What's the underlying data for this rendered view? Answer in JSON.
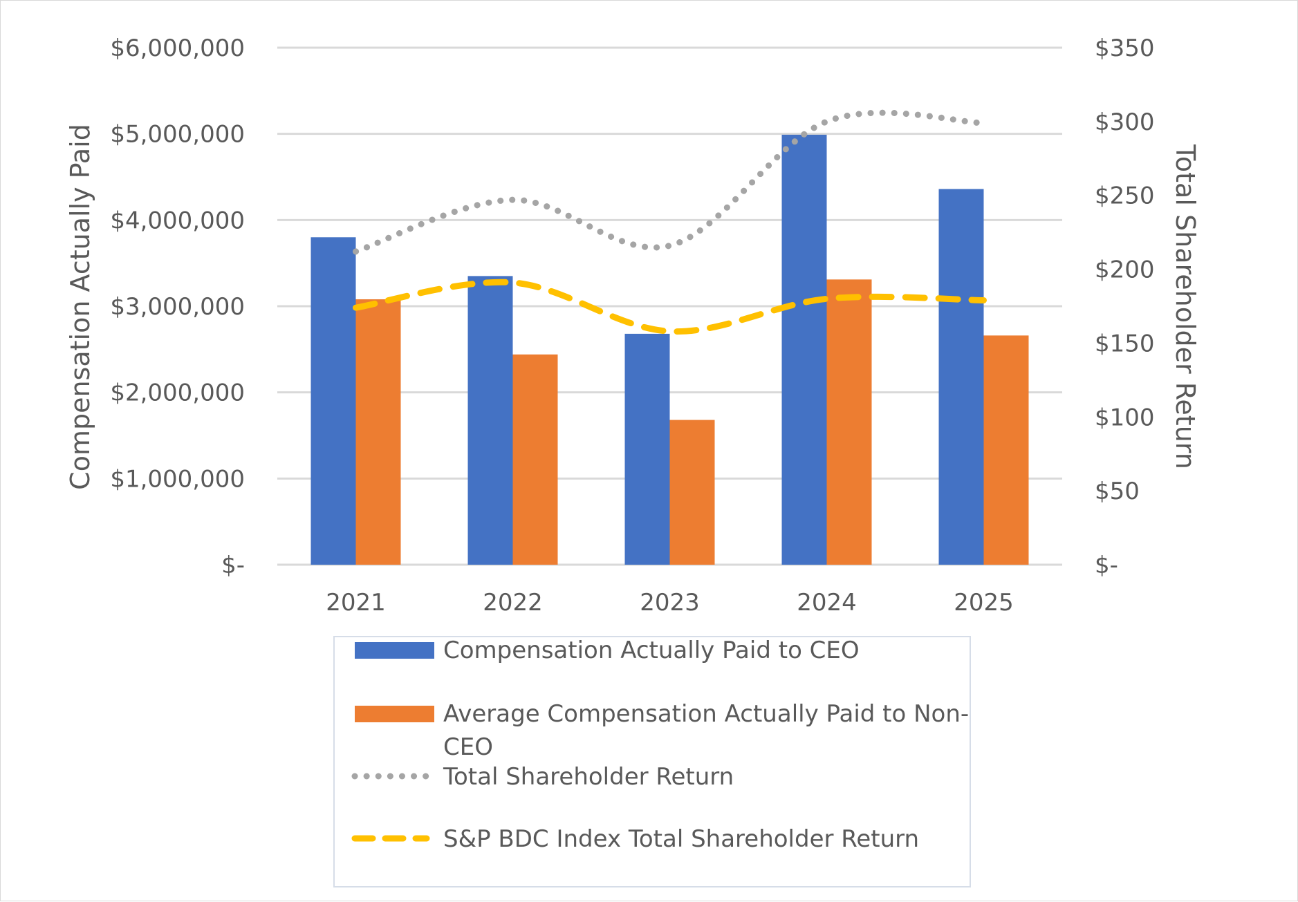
{
  "chart_data": {
    "type": "bar",
    "categories": [
      "2021",
      "2022",
      "2023",
      "2024",
      "2025"
    ],
    "series": [
      {
        "name": "Compensation Actually Paid to CEO",
        "kind": "bar",
        "axis": "left",
        "color": "#4472c4",
        "values": [
          3800000,
          3350000,
          2680000,
          4990000,
          4360000
        ]
      },
      {
        "name": "Average Compensation Actually Paid to Non-CEO",
        "kind": "bar",
        "axis": "left",
        "color": "#ed7d31",
        "values": [
          3080000,
          2440000,
          1680000,
          3310000,
          2660000
        ]
      },
      {
        "name": "Total Shareholder Return",
        "kind": "line",
        "style": "dotted",
        "axis": "right",
        "color": "#a5a5a5",
        "values": [
          212,
          247,
          216,
          300,
          299
        ]
      },
      {
        "name": "S&P BDC Index Total Shareholder Return",
        "kind": "line",
        "style": "dashed",
        "axis": "right",
        "color": "#ffc000",
        "values": [
          174,
          191,
          158,
          180,
          179
        ]
      }
    ],
    "ylabel": "Compensation Actually Paid",
    "y2label": "Total Shareholder Return",
    "ylim": [
      0,
      6000000
    ],
    "y2lim": [
      0,
      350
    ],
    "yticks": [
      "$6,000,000",
      "$5,000,000",
      "$4,000,000",
      "$3,000,000",
      "$2,000,000",
      "$1,000,000",
      "$-"
    ],
    "y2ticks": [
      "$350",
      "$300",
      "$250",
      "$200",
      "$150",
      "$100",
      "$50",
      "$-"
    ],
    "legend_labels": {
      "ceo": "Compensation Actually Paid to CEO",
      "nonceo_line1": "Average Compensation Actually Paid to Non-",
      "nonceo_line2": "CEO",
      "tsr": "Total Shareholder Return",
      "index": "S&P BDC Index Total Shareholder Return"
    },
    "grid": true,
    "legend": "bottom"
  }
}
